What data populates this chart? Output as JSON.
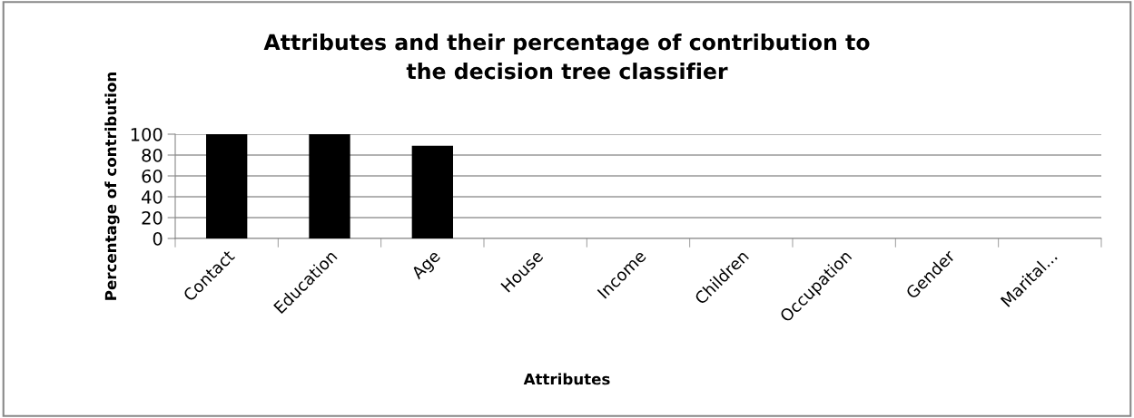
{
  "chart_data": {
    "type": "bar",
    "title": "Attributes and their percentage of contribution to\nthe decision tree classifier",
    "xlabel": "Attributes",
    "ylabel": "Percentage of contribution",
    "categories": [
      "Contact",
      "Education",
      "Age",
      "House",
      "Income",
      "Children",
      "Occupation",
      "Gender",
      "Marital..."
    ],
    "values": [
      100,
      100,
      89,
      0,
      0,
      0,
      0,
      0,
      0
    ],
    "color": "#000000",
    "ylim": [
      0,
      100
    ],
    "yticks": [
      0,
      20,
      40,
      60,
      80,
      100
    ],
    "grid": "y",
    "legend": false
  }
}
